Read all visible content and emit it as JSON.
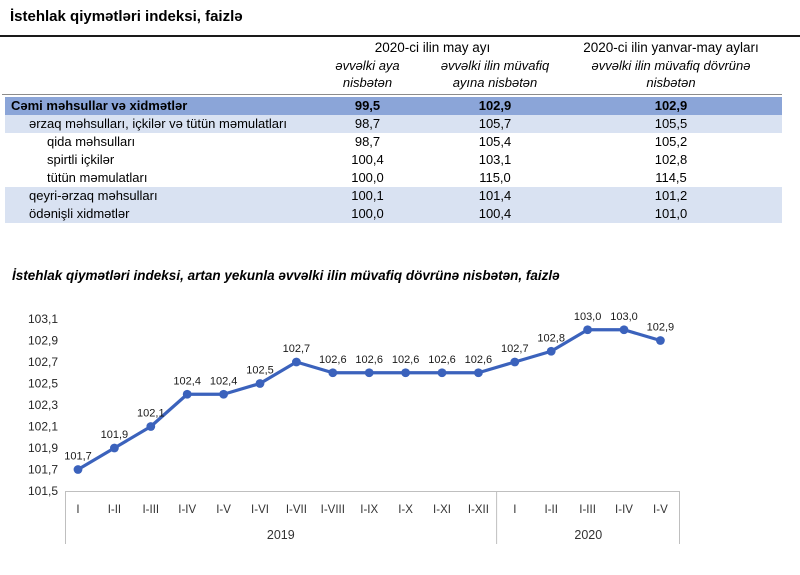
{
  "table_section": {
    "title": "İstehlak qiymətləri indeksi, faizlə",
    "table": {
      "col_groups": [
        {
          "label": "2020-ci ilin may ayı"
        },
        {
          "label": "2020-ci ilin yanvar-may ayları"
        }
      ],
      "columns": [
        "əvvəlki aya nisbətən",
        "əvvəlki ilin müvafiq ayına nisbətən",
        "əvvəlki ilin müvafiq dövrünə nisbətən"
      ],
      "rows": [
        {
          "label": "Cəmi məhsullar və xidmətlər",
          "values": [
            "99,5",
            "102,9",
            "102,9"
          ],
          "indent": 0,
          "bold": true,
          "shade": "dark"
        },
        {
          "label": "ərzaq məhsulları, içkilər və tütün məmulatları",
          "values": [
            "98,7",
            "105,7",
            "105,5"
          ],
          "indent": 1,
          "bold": false,
          "shade": "light"
        },
        {
          "label": "qida məhsulları",
          "values": [
            "98,7",
            "105,4",
            "105,2"
          ],
          "indent": 2,
          "bold": false,
          "shade": "none"
        },
        {
          "label": "spirtli içkilər",
          "values": [
            "100,4",
            "103,1",
            "102,8"
          ],
          "indent": 2,
          "bold": false,
          "shade": "none"
        },
        {
          "label": "tütün məmulatları",
          "values": [
            "100,0",
            "115,0",
            "114,5"
          ],
          "indent": 2,
          "bold": false,
          "shade": "none"
        },
        {
          "label": "qeyri-ərzaq məhsulları",
          "values": [
            "100,1",
            "101,4",
            "101,2"
          ],
          "indent": 1,
          "bold": false,
          "shade": "light"
        },
        {
          "label": "ödənişli xidmətlər",
          "values": [
            "100,0",
            "100,4",
            "101,0"
          ],
          "indent": 1,
          "bold": false,
          "shade": "light"
        }
      ]
    }
  },
  "chart_data": {
    "type": "line",
    "title": "İstehlak qiymətləri indeksi, artan yekunla əvvəlki ilin müvafiq dövrünə nisbətən, faizlə",
    "categories": [
      "I",
      "I-II",
      "I-III",
      "I-IV",
      "I-V",
      "I-VI",
      "I-VII",
      "I-VIII",
      "I-IX",
      "I-X",
      "I-XI",
      "I-XII",
      "I",
      "I-II",
      "I-III",
      "I-IV",
      "I-V"
    ],
    "group_labels": [
      {
        "label": "2019",
        "count": 12
      },
      {
        "label": "2020",
        "count": 5
      }
    ],
    "values": [
      101.7,
      101.9,
      102.1,
      102.4,
      102.4,
      102.5,
      102.7,
      102.6,
      102.6,
      102.6,
      102.6,
      102.6,
      102.7,
      102.8,
      103.0,
      103.0,
      102.9
    ],
    "point_labels": [
      "101,7",
      "101,9",
      "102,1",
      "102,4",
      "102,4",
      "102,5",
      "102,7",
      "102,6",
      "102,6",
      "102,6",
      "102,6",
      "102,6",
      "102,7",
      "102,8",
      "103,0",
      "103,0",
      "102,9"
    ],
    "ytick_labels": [
      "103,1",
      "102,9",
      "102,7",
      "102,5",
      "102,3",
      "102,1",
      "101,9",
      "101,7",
      "101,5"
    ],
    "ylim": [
      101.5,
      103.1
    ],
    "ytick_step": 0.2,
    "grid": false,
    "legend": false
  },
  "colors": {
    "line": "#3B62BC",
    "marker": "#3B62BC",
    "axis": "#BFBFBF",
    "table_header_row_bg": "#8BA5D8",
    "table_band_bg": "#D9E2F2",
    "rule": "#1a1a1a"
  }
}
